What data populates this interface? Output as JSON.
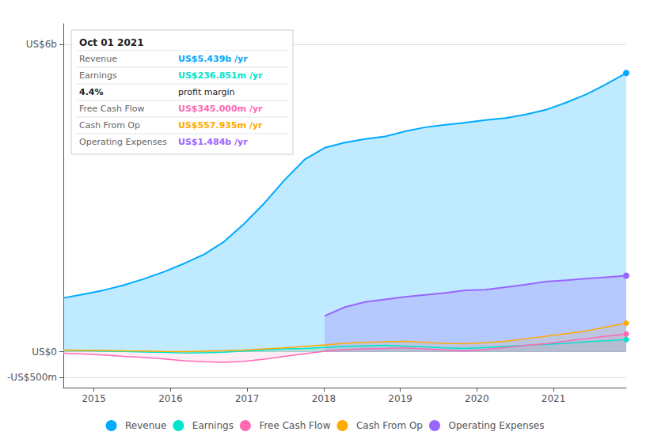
{
  "chart_data": {
    "type": "line",
    "x": [
      2014.6,
      2014.8625,
      2015.125,
      2015.3875,
      2015.65,
      2015.9125,
      2016.175,
      2016.4375,
      2016.7,
      2016.9625,
      2017.225,
      2017.4875,
      2017.75,
      2018.0125,
      2018.275,
      2018.5375,
      2018.8,
      2019.0625,
      2019.325,
      2019.5875,
      2019.85,
      2020.1125,
      2020.375,
      2020.6375,
      2020.9,
      2021.1625,
      2021.425,
      2021.6875,
      2021.95
    ],
    "series": [
      {
        "name": "Revenue",
        "color": "#00aaff",
        "values": [
          1050,
          1120,
          1200,
          1300,
          1420,
          1560,
          1720,
          1900,
          2150,
          2500,
          2900,
          3350,
          3750,
          3980,
          4080,
          4150,
          4200,
          4300,
          4380,
          4430,
          4470,
          4520,
          4560,
          4630,
          4720,
          4860,
          5020,
          5220,
          5439
        ]
      },
      {
        "name": "Earnings",
        "color": "#00e5cc",
        "values": [
          30,
          25,
          15,
          5,
          -5,
          -15,
          -25,
          -20,
          -10,
          15,
          35,
          55,
          65,
          85,
          105,
          115,
          125,
          110,
          95,
          75,
          65,
          85,
          105,
          125,
          145,
          165,
          195,
          215,
          237
        ]
      },
      {
        "name": "Free Cash Flow",
        "color": "#ff69b4",
        "values": [
          -30,
          -45,
          -65,
          -90,
          -110,
          -140,
          -175,
          -195,
          -205,
          -185,
          -145,
          -90,
          -40,
          10,
          40,
          55,
          65,
          75,
          55,
          35,
          15,
          45,
          85,
          125,
          155,
          205,
          255,
          305,
          345
        ]
      },
      {
        "name": "Cash From Op",
        "color": "#ffaa00",
        "values": [
          35,
          30,
          25,
          18,
          12,
          6,
          2,
          12,
          22,
          35,
          55,
          75,
          105,
          135,
          165,
          185,
          195,
          205,
          185,
          165,
          155,
          175,
          205,
          255,
          305,
          355,
          405,
          485,
          558
        ]
      },
      {
        "name": "Operating Expenses",
        "color": "#9966ff",
        "values": [
          null,
          null,
          null,
          null,
          null,
          null,
          null,
          null,
          null,
          null,
          null,
          null,
          null,
          700,
          870,
          970,
          1020,
          1070,
          1110,
          1150,
          1200,
          1210,
          1260,
          1310,
          1370,
          1395,
          1425,
          1455,
          1484
        ]
      }
    ],
    "xlim": [
      2014.6,
      2021.95
    ],
    "xticks": [
      2015,
      2016,
      2017,
      2018,
      2019,
      2020,
      2021
    ],
    "ylim": [
      -700,
      6400
    ],
    "yticks": [
      {
        "value": -500,
        "label": "-US$500m"
      },
      {
        "value": 0,
        "label": "US$0"
      },
      {
        "value": 6000,
        "label": "US$6b"
      }
    ],
    "grid": true,
    "legend": "bottom",
    "annotations": [
      [
        "Oct 01 2021"
      ],
      [
        "Revenue",
        "US$5.439b /yr"
      ],
      [
        "Earnings",
        "US$236.851m /yr"
      ],
      [
        "4.4%",
        "profit margin"
      ],
      [
        "Free Cash Flow",
        "US$345.000m /yr"
      ],
      [
        "Cash From Op",
        "US$557.935m /yr"
      ],
      [
        "Operating Expenses",
        "US$1.484b /yr"
      ]
    ]
  }
}
